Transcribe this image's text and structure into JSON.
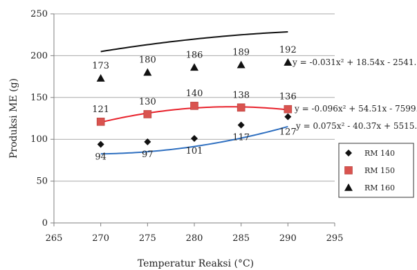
{
  "chart_data": {
    "type": "scatter",
    "xlabel": "Temperatur Reaksi (°C)",
    "ylabel": "Produksi ME (g)",
    "xlim": [
      265,
      295
    ],
    "ylim": [
      0,
      250
    ],
    "x_ticks": [
      265,
      270,
      275,
      280,
      285,
      290,
      295
    ],
    "y_ticks": [
      0,
      50,
      100,
      150,
      200,
      250
    ],
    "grid": "horizontal",
    "legend_position": "right",
    "x": [
      270,
      275,
      280,
      285,
      290
    ],
    "series": [
      {
        "name": "RM 140",
        "marker": "diamond",
        "marker_color": "#111111",
        "trend_color": "#2e6fc0",
        "values": [
          94,
          97,
          101,
          117,
          127
        ],
        "labels": [
          "94",
          "97",
          "101",
          "117",
          "127"
        ],
        "trend_coeffs": [
          0.075,
          -40.37,
          5515
        ],
        "equation": "y = 0.075x² - 40.37x + 5515."
      },
      {
        "name": "RM 150",
        "marker": "square",
        "marker_color": "#d9534f",
        "trend_color": "#e8202a",
        "values": [
          121,
          130,
          140,
          138,
          136
        ],
        "labels": [
          "121",
          "130",
          "140",
          "138",
          "136"
        ],
        "trend_coeffs": [
          -0.096,
          54.51,
          -7599
        ],
        "equation": "y = -0.096x² + 54.51x - 7599."
      },
      {
        "name": "RM 160",
        "marker": "triangle",
        "marker_color": "#111111",
        "trend_color": "#111111",
        "values": [
          173,
          180,
          186,
          189,
          192
        ],
        "labels": [
          "173",
          "180",
          "186",
          "189",
          "192"
        ],
        "trend_coeffs": [
          -0.031,
          18.54,
          -2541
        ],
        "equation": "y = -0.031x² + 18.54x - 2541."
      }
    ]
  }
}
